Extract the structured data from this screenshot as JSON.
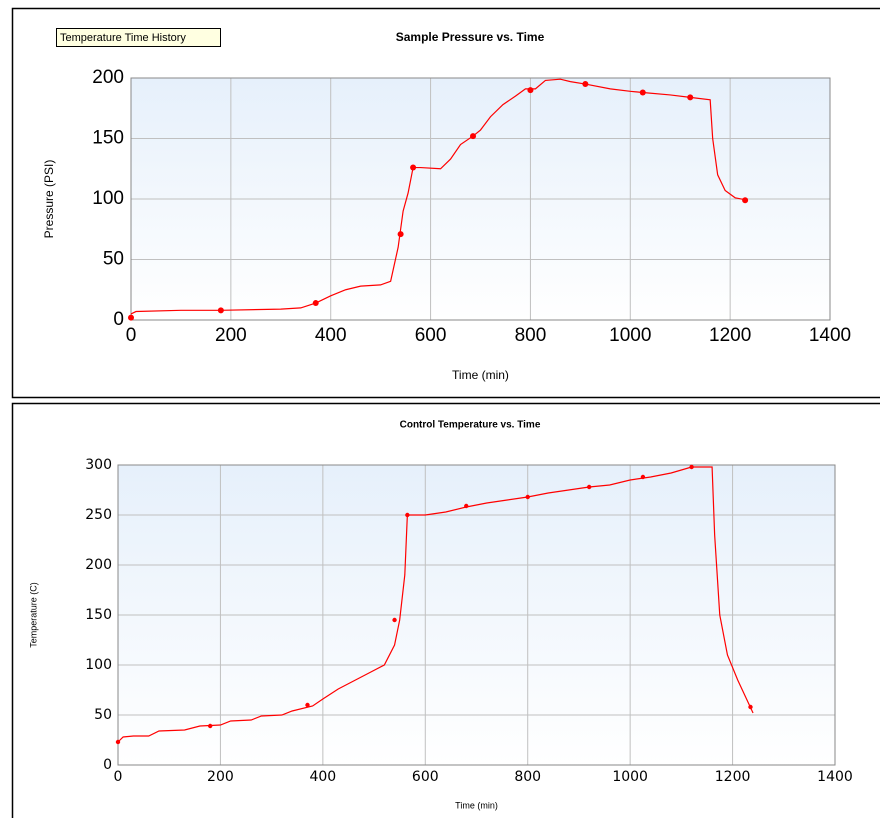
{
  "tooltip": "Temperature Time History",
  "chart_data": [
    {
      "type": "line",
      "title": "Sample Pressure vs. Time",
      "xlabel": "Time (min)",
      "ylabel": "Pressure (PSI)",
      "xlim": [
        0,
        1400
      ],
      "xticks": [
        0,
        200,
        400,
        600,
        800,
        1000,
        1200,
        1400
      ],
      "ylim": [
        0,
        200
      ],
      "yticks": [
        0,
        50,
        100,
        150,
        200
      ],
      "grid": true,
      "series": [
        {
          "style": "line",
          "color": "#ff0000",
          "x": [
            0,
            10,
            100,
            180,
            300,
            340,
            370,
            400,
            430,
            460,
            500,
            520,
            535,
            545,
            555,
            565,
            580,
            620,
            640,
            660,
            685,
            700,
            720,
            745,
            770,
            790,
            810,
            830,
            860,
            880,
            910,
            960,
            1000,
            1025,
            1080,
            1120,
            1160,
            1165,
            1175,
            1190,
            1210,
            1235
          ],
          "values": [
            5,
            7,
            8,
            8,
            9,
            10,
            14,
            20,
            25,
            28,
            29,
            32,
            60,
            90,
            105,
            126,
            126,
            125,
            133,
            145,
            152,
            157,
            168,
            178,
            185,
            191,
            191,
            198,
            199,
            197,
            195,
            191,
            189,
            188,
            186,
            184,
            182,
            150,
            120,
            107,
            101,
            99
          ]
        },
        {
          "style": "markers",
          "color": "#ff0000",
          "x": [
            0,
            180,
            370,
            540,
            565,
            685,
            800,
            910,
            1025,
            1120,
            1230
          ],
          "values": [
            2,
            8,
            14,
            71,
            126,
            152,
            190,
            195,
            188,
            184,
            99
          ]
        }
      ]
    },
    {
      "type": "line",
      "title": "Control Temperature vs. Time",
      "xlabel": "Time (min)",
      "ylabel": "Temperature (C)",
      "xlim": [
        0,
        1400
      ],
      "xticks": [
        0,
        200,
        400,
        600,
        800,
        1000,
        1200,
        1400
      ],
      "ylim": [
        0,
        300
      ],
      "yticks": [
        0,
        50,
        100,
        150,
        200,
        250,
        300
      ],
      "grid": true,
      "series": [
        {
          "style": "line",
          "color": "#ff0000",
          "x": [
            0,
            10,
            30,
            60,
            80,
            130,
            160,
            200,
            220,
            260,
            280,
            320,
            340,
            380,
            400,
            430,
            460,
            490,
            520,
            540,
            550,
            560,
            565,
            600,
            640,
            680,
            720,
            760,
            800,
            840,
            880,
            920,
            960,
            1000,
            1040,
            1080,
            1120,
            1160,
            1165,
            1175,
            1190,
            1210,
            1240
          ],
          "values": [
            23,
            28,
            29,
            29,
            34,
            35,
            39,
            40,
            44,
            45,
            49,
            50,
            54,
            59,
            66,
            76,
            84,
            92,
            100,
            120,
            145,
            190,
            250,
            250,
            253,
            258,
            262,
            265,
            268,
            272,
            275,
            278,
            280,
            285,
            288,
            292,
            298,
            298,
            230,
            150,
            110,
            85,
            52
          ]
        },
        {
          "style": "markers",
          "color": "#ff0000",
          "x": [
            0,
            180,
            370,
            540,
            565,
            680,
            800,
            920,
            1025,
            1120,
            1235
          ],
          "values": [
            23,
            39,
            60,
            145,
            250,
            259,
            268,
            278,
            288,
            298,
            58
          ]
        }
      ]
    }
  ]
}
